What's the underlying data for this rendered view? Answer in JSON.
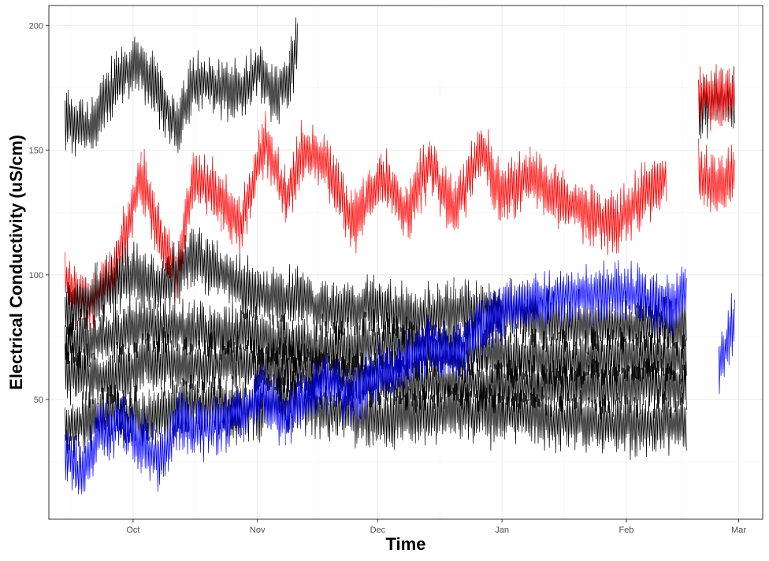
{
  "chart_data": {
    "type": "line",
    "xlabel": "Time",
    "ylabel": "Electrical Conductivity (uS/cm)",
    "ylim": [
      2,
      208
    ],
    "xlim": [
      "2020-09-10",
      "2021-03-07"
    ],
    "x_ticks": [
      {
        "label": "Oct",
        "date": "2020-10-01"
      },
      {
        "label": "Nov",
        "date": "2020-11-01"
      },
      {
        "label": "Dec",
        "date": "2020-12-01"
      },
      {
        "label": "Jan",
        "date": "2021-01-01"
      },
      {
        "label": "Feb",
        "date": "2021-02-01"
      },
      {
        "label": "Mar",
        "date": "2021-03-01"
      }
    ],
    "y_ticks": [
      50,
      100,
      150,
      200
    ],
    "grid": true,
    "legend": "none",
    "series": [
      {
        "color": "#000000",
        "x": [
          "2020-09-14",
          "2020-09-20",
          "2020-09-27",
          "2020-10-03",
          "2020-10-08",
          "2020-10-12",
          "2020-10-16",
          "2020-10-22",
          "2020-10-28",
          "2020-11-01",
          "2020-11-05",
          "2020-11-09",
          "2020-11-11",
          "2020-11-12",
          "2021-02-19",
          "2021-02-28"
        ],
        "y": [
          163,
          158,
          178,
          185,
          170,
          160,
          178,
          175,
          172,
          183,
          172,
          180,
          195,
          null,
          167,
          172
        ]
      },
      {
        "color": "#ff0000",
        "x": [
          "2020-09-14",
          "2020-09-20",
          "2020-09-27",
          "2020-10-03",
          "2020-10-08",
          "2020-10-12",
          "2020-10-16",
          "2020-10-23",
          "2020-10-28",
          "2020-11-03",
          "2020-11-08",
          "2020-11-12",
          "2020-11-18",
          "2020-11-25",
          "2020-12-02",
          "2020-12-08",
          "2020-12-14",
          "2020-12-20",
          "2020-12-27",
          "2021-01-01",
          "2021-01-08",
          "2021-01-15",
          "2021-01-22",
          "2021-01-29",
          "2021-02-04",
          "2021-02-11",
          "2021-02-16",
          "2021-02-19",
          "2021-02-28"
        ],
        "y": [
          98,
          88,
          105,
          140,
          115,
          100,
          140,
          130,
          120,
          155,
          130,
          150,
          145,
          120,
          140,
          125,
          145,
          125,
          150,
          132,
          140,
          130,
          125,
          120,
          130,
          140,
          null,
          172,
          172
        ]
      },
      {
        "color": "#ff0000",
        "x": [
          "2021-02-19",
          "2021-02-24",
          "2021-02-28"
        ],
        "y": [
          140,
          135,
          142
        ]
      },
      {
        "color": "#000000",
        "x": [
          "2020-09-14",
          "2020-09-22",
          "2020-09-30",
          "2020-10-08",
          "2020-10-16",
          "2020-10-24",
          "2020-11-01",
          "2020-11-12",
          "2020-11-20",
          "2020-12-01",
          "2020-12-10",
          "2020-12-20",
          "2021-01-01",
          "2021-01-15",
          "2021-02-01",
          "2021-02-16",
          "2021-02-19",
          "2021-02-28"
        ],
        "y": [
          84,
          92,
          100,
          95,
          108,
          100,
          92,
          90,
          85,
          88,
          82,
          86,
          85,
          80,
          80,
          80,
          null,
          90
        ]
      },
      {
        "color": "#000000",
        "x": [
          "2020-09-14",
          "2020-09-25",
          "2020-10-05",
          "2020-10-15",
          "2020-10-28",
          "2020-11-10",
          "2020-11-20",
          "2020-12-01",
          "2020-12-15",
          "2021-01-01",
          "2021-01-15",
          "2021-02-01",
          "2021-02-16",
          "2021-02-19",
          "2021-02-28"
        ],
        "y": [
          72,
          75,
          80,
          78,
          76,
          72,
          70,
          72,
          70,
          68,
          65,
          67,
          66,
          null,
          73
        ]
      },
      {
        "color": "#000000",
        "x": [
          "2020-09-14",
          "2020-09-25",
          "2020-10-05",
          "2020-10-15",
          "2020-10-28",
          "2020-11-10",
          "2020-11-20",
          "2020-12-01",
          "2020-12-15",
          "2021-01-01",
          "2021-01-15",
          "2021-02-01",
          "2021-02-16",
          "2021-02-19",
          "2021-02-28"
        ],
        "y": [
          62,
          58,
          65,
          63,
          65,
          62,
          60,
          58,
          57,
          55,
          55,
          56,
          55,
          null,
          60
        ]
      },
      {
        "color": "#000000",
        "x": [
          "2020-09-14",
          "2020-09-25",
          "2020-10-05",
          "2020-10-15",
          "2020-10-28",
          "2020-11-10",
          "2020-11-20",
          "2020-12-01",
          "2020-12-15",
          "2021-01-01",
          "2021-01-15",
          "2021-02-01",
          "2021-02-16",
          "2021-02-19",
          "2021-02-28"
        ],
        "y": [
          38,
          45,
          42,
          48,
          45,
          50,
          45,
          42,
          45,
          44,
          42,
          40,
          40,
          null,
          44
        ]
      },
      {
        "color": "#0000ff",
        "x": [
          "2020-09-14",
          "2020-09-18",
          "2020-09-22",
          "2020-09-28",
          "2020-10-03",
          "2020-10-08",
          "2020-10-12",
          "2020-10-16",
          "2020-10-22",
          "2020-10-28",
          "2020-11-03",
          "2020-11-08",
          "2020-11-12",
          "2020-11-18",
          "2020-11-25",
          "2020-12-02",
          "2020-12-08",
          "2020-12-14",
          "2020-12-20",
          "2020-12-27",
          "2021-01-01",
          "2021-01-10",
          "2021-01-20",
          "2021-02-01",
          "2021-02-10",
          "2021-02-16",
          "2021-02-19",
          "2021-02-24",
          "2021-02-28"
        ],
        "y": [
          28,
          18,
          35,
          42,
          32,
          25,
          42,
          38,
          40,
          45,
          52,
          42,
          50,
          58,
          52,
          60,
          65,
          72,
          68,
          80,
          85,
          90,
          92,
          93,
          88,
          92,
          null,
          60,
          85
        ]
      }
    ]
  }
}
